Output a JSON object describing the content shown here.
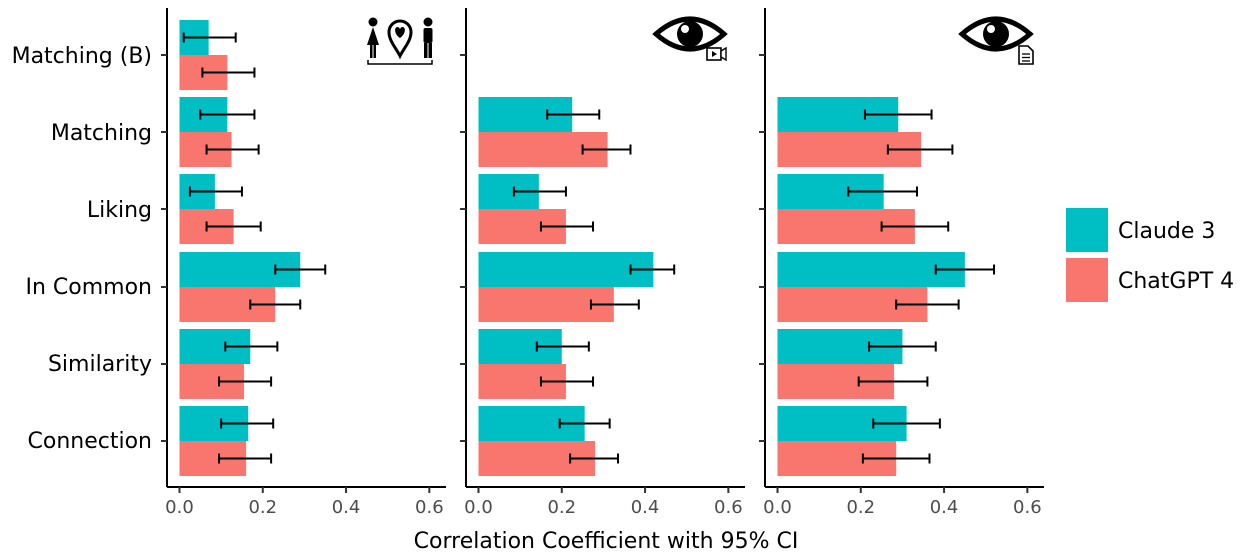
{
  "chart_data": {
    "type": "bar",
    "orientation": "horizontal",
    "xlabel": "Correlation Coefficient with 95% CI",
    "xlim": [
      -0.03,
      0.64
    ],
    "xticks": [
      "0.0",
      "0.2",
      "0.4",
      "0.6"
    ],
    "categories": [
      "Matching (B)",
      "Matching",
      "Liking",
      "In Common",
      "Similarity",
      "Connection"
    ],
    "legend": {
      "position": "right"
    },
    "series_meta": [
      {
        "name": "Claude 3",
        "color": "#00BFC4"
      },
      {
        "name": "ChatGPT 4",
        "color": "#F8766D"
      }
    ],
    "panels": [
      {
        "icon": "couple-location-pin-icon",
        "series": [
          {
            "name": "Claude 3",
            "values": [
              0.07,
              0.115,
              0.085,
              0.29,
              0.17,
              0.165
            ],
            "ci_low": [
              0.01,
              0.05,
              0.025,
              0.23,
              0.11,
              0.1
            ],
            "ci_high": [
              0.135,
              0.18,
              0.15,
              0.35,
              0.235,
              0.225
            ]
          },
          {
            "name": "ChatGPT 4",
            "values": [
              0.115,
              0.125,
              0.13,
              0.23,
              0.155,
              0.16
            ],
            "ci_low": [
              0.055,
              0.065,
              0.065,
              0.17,
              0.095,
              0.095
            ],
            "ci_high": [
              0.18,
              0.19,
              0.195,
              0.29,
              0.22,
              0.22
            ]
          }
        ]
      },
      {
        "icon": "eye-video-icon",
        "series": [
          {
            "name": "Claude 3",
            "values": [
              null,
              0.225,
              0.145,
              0.42,
              0.2,
              0.255
            ],
            "ci_low": [
              null,
              0.165,
              0.085,
              0.365,
              0.14,
              0.195
            ],
            "ci_high": [
              null,
              0.29,
              0.21,
              0.47,
              0.265,
              0.315
            ]
          },
          {
            "name": "ChatGPT 4",
            "values": [
              null,
              0.31,
              0.21,
              0.325,
              0.21,
              0.28
            ],
            "ci_low": [
              null,
              0.25,
              0.15,
              0.27,
              0.15,
              0.22
            ],
            "ci_high": [
              null,
              0.365,
              0.275,
              0.385,
              0.275,
              0.335
            ]
          }
        ]
      },
      {
        "icon": "eye-document-icon",
        "series": [
          {
            "name": "Claude 3",
            "values": [
              null,
              0.29,
              0.255,
              0.45,
              0.3,
              0.31
            ],
            "ci_low": [
              null,
              0.21,
              0.17,
              0.38,
              0.22,
              0.23
            ],
            "ci_high": [
              null,
              0.37,
              0.335,
              0.52,
              0.38,
              0.39
            ]
          },
          {
            "name": "ChatGPT 4",
            "values": [
              null,
              0.345,
              0.33,
              0.36,
              0.28,
              0.285
            ],
            "ci_low": [
              null,
              0.265,
              0.25,
              0.285,
              0.195,
              0.205
            ],
            "ci_high": [
              null,
              0.42,
              0.41,
              0.435,
              0.36,
              0.365
            ]
          }
        ]
      }
    ]
  }
}
